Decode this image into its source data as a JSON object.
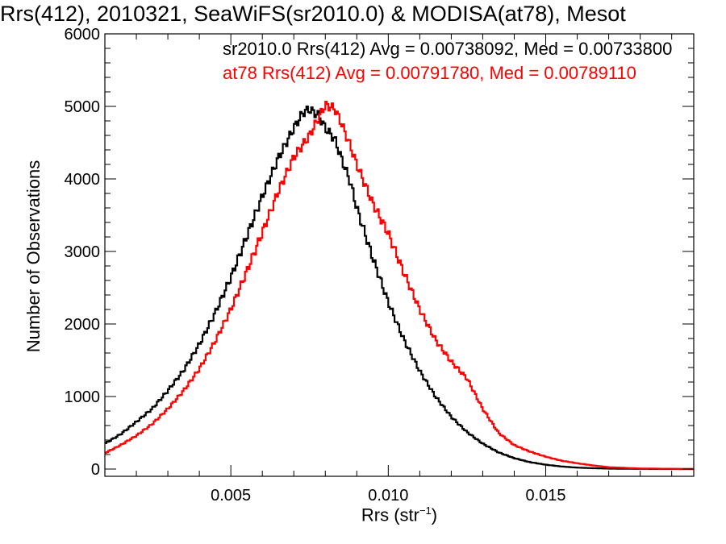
{
  "chart_data": {
    "type": "line",
    "step": true,
    "title": "Rrs(412), 2010321, SeaWiFS(sr2010.0) & MODISA(at78), Mesot",
    "xlabel": "Rrs (str",
    "xlabel_sup": "−1",
    "xlabel_end": ")",
    "ylabel": "Number of Observations",
    "xlim": [
      0.001,
      0.0197
    ],
    "ylim": [
      -100,
      6000
    ],
    "x_ticks": [
      0.005,
      0.01,
      0.015
    ],
    "x_tick_labels": [
      "0.005",
      "0.010",
      "0.015"
    ],
    "y_ticks": [
      0,
      1000,
      2000,
      3000,
      4000,
      5000,
      6000
    ],
    "y_tick_labels": [
      "0",
      "1000",
      "2000",
      "3000",
      "4000",
      "5000",
      "6000"
    ],
    "grid": false,
    "legend": "top-right",
    "legend_entries": [
      "sr2010.0 Rrs(412) Avg = 0.00738092, Med = 0.00733800",
      "at78 Rrs(412) Avg = 0.00791780, Med = 0.00789110"
    ],
    "series": [
      {
        "name": "sr2010.0",
        "color": "#000000",
        "points": [
          [
            0.001,
            350
          ],
          [
            0.0015,
            480
          ],
          [
            0.002,
            650
          ],
          [
            0.0025,
            830
          ],
          [
            0.003,
            1080
          ],
          [
            0.0035,
            1360
          ],
          [
            0.004,
            1720
          ],
          [
            0.0045,
            2150
          ],
          [
            0.005,
            2640
          ],
          [
            0.0055,
            3200
          ],
          [
            0.006,
            3760
          ],
          [
            0.0065,
            4280
          ],
          [
            0.007,
            4700
          ],
          [
            0.0073,
            4920
          ],
          [
            0.0075,
            4960
          ],
          [
            0.0078,
            4870
          ],
          [
            0.008,
            4700
          ],
          [
            0.0083,
            4550
          ],
          [
            0.0085,
            4300
          ],
          [
            0.0088,
            3950
          ],
          [
            0.009,
            3600
          ],
          [
            0.0095,
            2920
          ],
          [
            0.01,
            2300
          ],
          [
            0.0105,
            1780
          ],
          [
            0.011,
            1350
          ],
          [
            0.0115,
            1000
          ],
          [
            0.012,
            720
          ],
          [
            0.0125,
            510
          ],
          [
            0.013,
            350
          ],
          [
            0.0135,
            230
          ],
          [
            0.014,
            150
          ],
          [
            0.0145,
            95
          ],
          [
            0.015,
            60
          ],
          [
            0.0155,
            35
          ],
          [
            0.016,
            20
          ],
          [
            0.0165,
            12
          ],
          [
            0.017,
            6
          ],
          [
            0.018,
            2
          ],
          [
            0.0197,
            0
          ]
        ]
      },
      {
        "name": "at78",
        "color": "#ff0000",
        "points": [
          [
            0.001,
            220
          ],
          [
            0.0015,
            330
          ],
          [
            0.002,
            460
          ],
          [
            0.0025,
            620
          ],
          [
            0.003,
            830
          ],
          [
            0.0035,
            1080
          ],
          [
            0.004,
            1380
          ],
          [
            0.0045,
            1760
          ],
          [
            0.005,
            2200
          ],
          [
            0.0055,
            2720
          ],
          [
            0.006,
            3260
          ],
          [
            0.0065,
            3820
          ],
          [
            0.007,
            4300
          ],
          [
            0.0075,
            4600
          ],
          [
            0.0078,
            4850
          ],
          [
            0.008,
            5020
          ],
          [
            0.0083,
            4970
          ],
          [
            0.0085,
            4780
          ],
          [
            0.0088,
            4450
          ],
          [
            0.009,
            4200
          ],
          [
            0.0095,
            3670
          ],
          [
            0.01,
            3250
          ],
          [
            0.0105,
            2700
          ],
          [
            0.011,
            2200
          ],
          [
            0.0115,
            1780
          ],
          [
            0.012,
            1480
          ],
          [
            0.0125,
            1250
          ],
          [
            0.013,
            830
          ],
          [
            0.0135,
            500
          ],
          [
            0.014,
            330
          ],
          [
            0.0145,
            240
          ],
          [
            0.015,
            170
          ],
          [
            0.0155,
            115
          ],
          [
            0.016,
            80
          ],
          [
            0.0165,
            50
          ],
          [
            0.017,
            25
          ],
          [
            0.018,
            8
          ],
          [
            0.0197,
            0
          ]
        ]
      }
    ]
  }
}
